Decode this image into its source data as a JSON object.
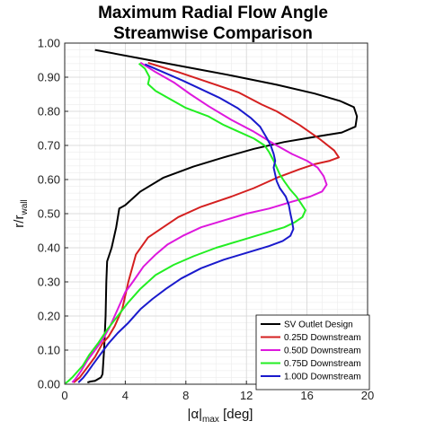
{
  "chart_data": {
    "type": "line",
    "title": [
      "Maximum Radial Flow Angle",
      "Streamwise Comparison"
    ],
    "xlabel": {
      "base": "|α|",
      "sub": "max",
      "tail": " [deg]"
    },
    "ylabel": {
      "base": "r/r",
      "sub": "wall"
    },
    "xlim": [
      0,
      20
    ],
    "ylim": [
      0,
      1.0
    ],
    "xticks": [
      0,
      4,
      8,
      12,
      16,
      20
    ],
    "xtick_labels": [
      "0",
      "4",
      "8",
      "12",
      "16",
      "20"
    ],
    "yticks": [
      0,
      0.1,
      0.2,
      0.3,
      0.4,
      0.5,
      0.6,
      0.7,
      0.8,
      0.9,
      1.0
    ],
    "ytick_labels": [
      "0.00",
      "0.10",
      "0.20",
      "0.30",
      "0.40",
      "0.50",
      "0.60",
      "0.70",
      "0.80",
      "0.90",
      "1.00"
    ],
    "grid": true,
    "minor_grid": true,
    "legend_position": "bottom-right",
    "series": [
      {
        "name": "SV Outlet Design",
        "color": "#000000",
        "points": [
          [
            2.0,
            0.98
          ],
          [
            5.0,
            0.955
          ],
          [
            8.0,
            0.93
          ],
          [
            11.0,
            0.905
          ],
          [
            14.0,
            0.878
          ],
          [
            16.5,
            0.852
          ],
          [
            18.2,
            0.83
          ],
          [
            19.1,
            0.812
          ],
          [
            19.3,
            0.785
          ],
          [
            19.2,
            0.755
          ],
          [
            18.3,
            0.738
          ],
          [
            16.5,
            0.725
          ],
          [
            14.5,
            0.71
          ],
          [
            12.5,
            0.69
          ],
          [
            10.5,
            0.665
          ],
          [
            8.5,
            0.638
          ],
          [
            6.5,
            0.605
          ],
          [
            5.0,
            0.565
          ],
          [
            4.0,
            0.525
          ],
          [
            3.6,
            0.515
          ],
          [
            3.4,
            0.46
          ],
          [
            3.1,
            0.4
          ],
          [
            2.8,
            0.36
          ],
          [
            2.75,
            0.3
          ],
          [
            2.7,
            0.2
          ],
          [
            2.6,
            0.1
          ],
          [
            2.5,
            0.03
          ],
          [
            2.4,
            0.02
          ],
          [
            2.0,
            0.01
          ],
          [
            1.7,
            0.008
          ],
          [
            1.5,
            0.005
          ]
        ]
      },
      {
        "name": "0.25D Downstream",
        "color": "#d42020",
        "points": [
          [
            5.5,
            0.942
          ],
          [
            7.5,
            0.915
          ],
          [
            9.5,
            0.885
          ],
          [
            11.5,
            0.855
          ],
          [
            13.0,
            0.82
          ],
          [
            14.0,
            0.8
          ],
          [
            15.5,
            0.76
          ],
          [
            16.8,
            0.72
          ],
          [
            17.8,
            0.685
          ],
          [
            18.1,
            0.665
          ],
          [
            17.5,
            0.655
          ],
          [
            16.5,
            0.645
          ],
          [
            15.5,
            0.63
          ],
          [
            14.0,
            0.605
          ],
          [
            12.5,
            0.575
          ],
          [
            11.0,
            0.55
          ],
          [
            9.0,
            0.52
          ],
          [
            7.5,
            0.49
          ],
          [
            6.5,
            0.46
          ],
          [
            5.5,
            0.43
          ],
          [
            4.7,
            0.38
          ],
          [
            4.2,
            0.3
          ],
          [
            3.8,
            0.22
          ],
          [
            3.3,
            0.17
          ],
          [
            2.9,
            0.14
          ],
          [
            2.5,
            0.12
          ],
          [
            2.0,
            0.08
          ],
          [
            1.5,
            0.05
          ],
          [
            1.0,
            0.02
          ],
          [
            0.6,
            0.005
          ]
        ]
      },
      {
        "name": "0.50D Downstream",
        "color": "#dd18dd",
        "points": [
          [
            5.0,
            0.943
          ],
          [
            6.0,
            0.915
          ],
          [
            7.2,
            0.885
          ],
          [
            8.3,
            0.85
          ],
          [
            9.5,
            0.815
          ],
          [
            11.0,
            0.775
          ],
          [
            12.5,
            0.74
          ],
          [
            13.8,
            0.705
          ],
          [
            15.0,
            0.675
          ],
          [
            16.0,
            0.655
          ],
          [
            16.7,
            0.635
          ],
          [
            17.1,
            0.61
          ],
          [
            17.3,
            0.585
          ],
          [
            17.0,
            0.565
          ],
          [
            16.2,
            0.55
          ],
          [
            15.0,
            0.535
          ],
          [
            13.5,
            0.515
          ],
          [
            12.0,
            0.5
          ],
          [
            10.5,
            0.48
          ],
          [
            9.0,
            0.46
          ],
          [
            7.8,
            0.435
          ],
          [
            6.8,
            0.41
          ],
          [
            6.0,
            0.38
          ],
          [
            5.2,
            0.345
          ],
          [
            4.5,
            0.3
          ],
          [
            4.0,
            0.27
          ],
          [
            3.5,
            0.22
          ],
          [
            3.0,
            0.17
          ],
          [
            2.5,
            0.13
          ],
          [
            2.0,
            0.1
          ],
          [
            1.5,
            0.07
          ],
          [
            1.1,
            0.04
          ],
          [
            0.7,
            0.015
          ],
          [
            0.5,
            0.005
          ]
        ]
      },
      {
        "name": "0.75D Downstream",
        "color": "#22ee22",
        "points": [
          [
            4.9,
            0.94
          ],
          [
            5.3,
            0.925
          ],
          [
            5.6,
            0.9
          ],
          [
            5.5,
            0.88
          ],
          [
            6.0,
            0.86
          ],
          [
            7.0,
            0.835
          ],
          [
            8.0,
            0.81
          ],
          [
            9.5,
            0.785
          ],
          [
            10.5,
            0.76
          ],
          [
            11.5,
            0.74
          ],
          [
            12.5,
            0.72
          ],
          [
            13.2,
            0.7
          ],
          [
            13.5,
            0.68
          ],
          [
            13.8,
            0.655
          ],
          [
            14.0,
            0.635
          ],
          [
            14.2,
            0.615
          ],
          [
            14.5,
            0.595
          ],
          [
            14.9,
            0.57
          ],
          [
            15.3,
            0.55
          ],
          [
            15.6,
            0.53
          ],
          [
            15.9,
            0.51
          ],
          [
            15.7,
            0.49
          ],
          [
            15.2,
            0.475
          ],
          [
            14.5,
            0.46
          ],
          [
            13.0,
            0.44
          ],
          [
            11.5,
            0.42
          ],
          [
            10.0,
            0.4
          ],
          [
            8.5,
            0.375
          ],
          [
            7.2,
            0.35
          ],
          [
            6.0,
            0.32
          ],
          [
            5.0,
            0.28
          ],
          [
            4.2,
            0.24
          ],
          [
            3.5,
            0.2
          ],
          [
            2.8,
            0.16
          ],
          [
            2.2,
            0.12
          ],
          [
            1.6,
            0.085
          ],
          [
            1.2,
            0.055
          ],
          [
            0.8,
            0.035
          ],
          [
            0.5,
            0.02
          ],
          [
            0.2,
            0.008
          ],
          [
            0.05,
            0.003
          ]
        ]
      },
      {
        "name": "1.00D Downstream",
        "color": "#1a1acc",
        "points": [
          [
            5.3,
            0.938
          ],
          [
            6.5,
            0.915
          ],
          [
            7.8,
            0.89
          ],
          [
            9.0,
            0.865
          ],
          [
            10.2,
            0.84
          ],
          [
            11.4,
            0.81
          ],
          [
            12.3,
            0.78
          ],
          [
            12.9,
            0.755
          ],
          [
            13.3,
            0.725
          ],
          [
            13.6,
            0.7
          ],
          [
            13.8,
            0.675
          ],
          [
            13.9,
            0.655
          ],
          [
            13.8,
            0.635
          ],
          [
            13.9,
            0.615
          ],
          [
            14.0,
            0.595
          ],
          [
            14.2,
            0.575
          ],
          [
            14.6,
            0.55
          ],
          [
            14.8,
            0.525
          ],
          [
            14.9,
            0.5
          ],
          [
            15.0,
            0.48
          ],
          [
            15.1,
            0.455
          ],
          [
            14.9,
            0.435
          ],
          [
            14.4,
            0.42
          ],
          [
            13.5,
            0.405
          ],
          [
            12.0,
            0.385
          ],
          [
            10.5,
            0.365
          ],
          [
            9.0,
            0.34
          ],
          [
            7.7,
            0.31
          ],
          [
            6.7,
            0.28
          ],
          [
            5.8,
            0.25
          ],
          [
            5.0,
            0.22
          ],
          [
            4.2,
            0.18
          ],
          [
            3.5,
            0.15
          ],
          [
            2.9,
            0.12
          ],
          [
            2.4,
            0.09
          ],
          [
            1.9,
            0.06
          ],
          [
            1.5,
            0.035
          ],
          [
            1.2,
            0.018
          ],
          [
            0.9,
            0.005
          ]
        ]
      }
    ]
  }
}
